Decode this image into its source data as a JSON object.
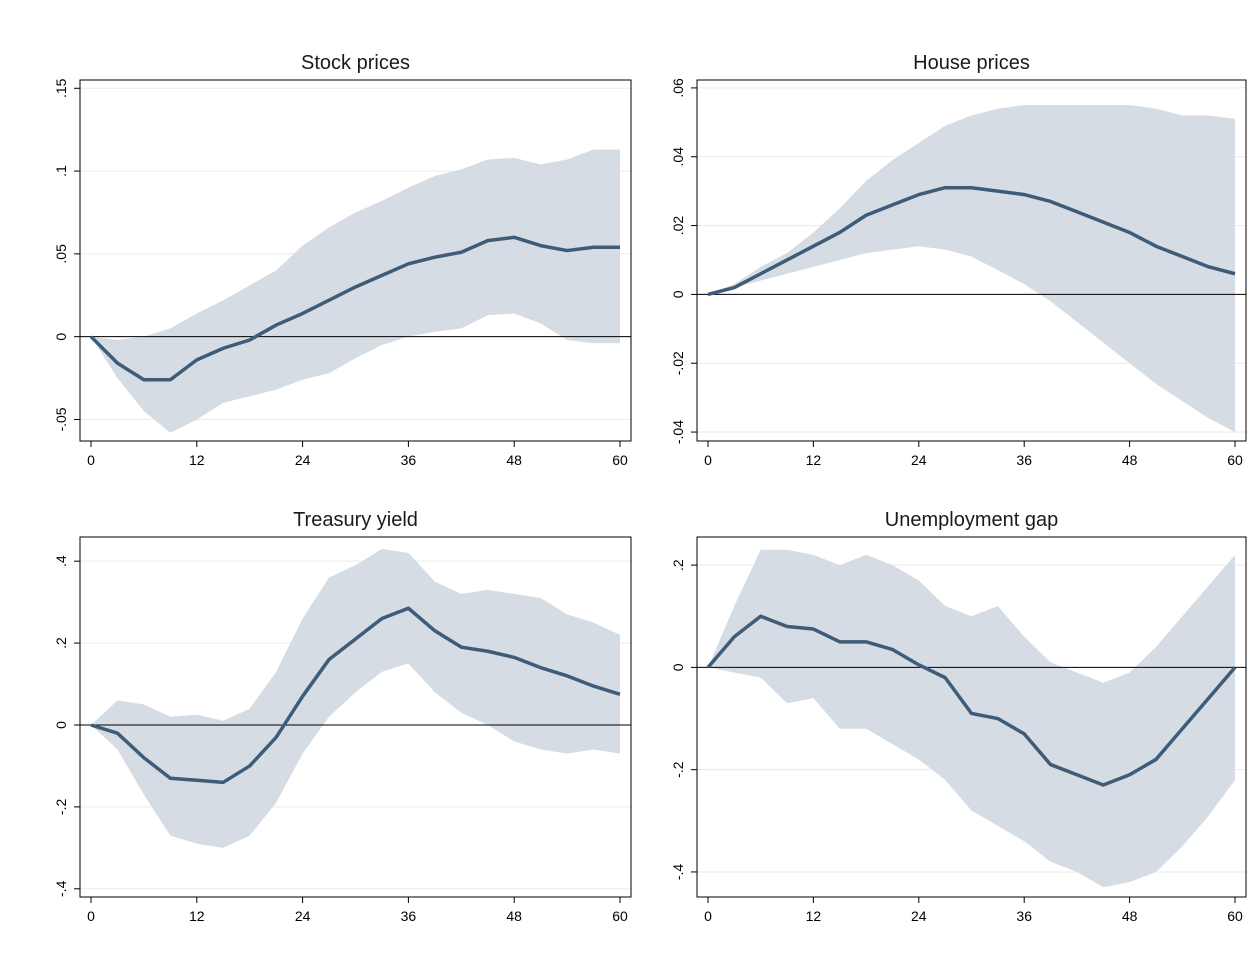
{
  "chart_data": [
    {
      "type": "line",
      "title": "Stock prices",
      "x": [
        0,
        3,
        6,
        9,
        12,
        15,
        18,
        21,
        24,
        27,
        30,
        33,
        36,
        39,
        42,
        45,
        48,
        51,
        54,
        57,
        60
      ],
      "values": [
        0,
        -0.016,
        -0.026,
        -0.026,
        -0.014,
        -0.007,
        -0.002,
        0.007,
        0.014,
        0.022,
        0.03,
        0.037,
        0.044,
        0.048,
        0.051,
        0.058,
        0.06,
        0.055,
        0.052,
        0.054,
        0.054
      ],
      "band": {
        "upper": [
          0,
          -0.002,
          0.0,
          0.005,
          0.014,
          0.022,
          0.031,
          0.04,
          0.055,
          0.066,
          0.075,
          0.082,
          0.09,
          0.097,
          0.101,
          0.107,
          0.108,
          0.104,
          0.107,
          0.113,
          0.113
        ],
        "lower": [
          0,
          -0.025,
          -0.045,
          -0.058,
          -0.05,
          -0.04,
          -0.036,
          -0.032,
          -0.026,
          -0.022,
          -0.013,
          -0.005,
          0.0,
          0.003,
          0.005,
          0.013,
          0.014,
          0.008,
          -0.002,
          -0.004,
          -0.004
        ]
      },
      "color": "#3e5c78",
      "band_color": "#d5dce3",
      "zero_line": true,
      "grid": true,
      "xlim": [
        -1.25,
        61.25
      ],
      "xticks": [
        0,
        12,
        24,
        36,
        48,
        60
      ],
      "ylim": [
        -0.063,
        0.155
      ],
      "yticks": [
        {
          "value": -0.05,
          "label": "-.05"
        },
        0,
        {
          "value": 0.05,
          "label": ".05"
        },
        {
          "value": 0.1,
          "label": ".1"
        },
        {
          "value": 0.15,
          "label": ".15"
        }
      ]
    },
    {
      "type": "line",
      "title": "House prices",
      "x": [
        0,
        3,
        6,
        9,
        12,
        15,
        18,
        21,
        24,
        27,
        30,
        33,
        36,
        39,
        42,
        45,
        48,
        51,
        54,
        57,
        60
      ],
      "values": [
        0,
        0.002,
        0.006,
        0.01,
        0.014,
        0.018,
        0.023,
        0.026,
        0.029,
        0.031,
        0.031,
        0.03,
        0.029,
        0.027,
        0.024,
        0.021,
        0.018,
        0.014,
        0.011,
        0.008,
        0.006
      ],
      "band": {
        "upper": [
          0,
          0.003,
          0.008,
          0.012,
          0.018,
          0.025,
          0.033,
          0.039,
          0.044,
          0.049,
          0.052,
          0.054,
          0.055,
          0.055,
          0.055,
          0.055,
          0.055,
          0.054,
          0.052,
          0.052,
          0.051
        ],
        "lower": [
          0,
          0.002,
          0.004,
          0.006,
          0.008,
          0.01,
          0.012,
          0.013,
          0.014,
          0.013,
          0.011,
          0.007,
          0.003,
          -0.002,
          -0.008,
          -0.014,
          -0.02,
          -0.026,
          -0.031,
          -0.036,
          -0.04
        ]
      },
      "color": "#3e5c78",
      "band_color": "#d5dce3",
      "zero_line": true,
      "grid": true,
      "xlim": [
        -1.25,
        61.25
      ],
      "xticks": [
        0,
        12,
        24,
        36,
        48,
        60
      ],
      "ylim": [
        -0.0426,
        0.0623
      ],
      "yticks": [
        {
          "value": -0.04,
          "label": "-.04"
        },
        {
          "value": -0.02,
          "label": "-.02"
        },
        0,
        {
          "value": 0.02,
          "label": ".02"
        },
        {
          "value": 0.04,
          "label": ".04"
        },
        {
          "value": 0.06,
          "label": ".06"
        }
      ]
    },
    {
      "type": "line",
      "title": "Treasury yield",
      "x": [
        0,
        3,
        6,
        9,
        12,
        15,
        18,
        21,
        24,
        27,
        30,
        33,
        36,
        39,
        42,
        45,
        48,
        51,
        54,
        57,
        60
      ],
      "values": [
        0,
        -0.02,
        -0.08,
        -0.13,
        -0.135,
        -0.14,
        -0.1,
        -0.03,
        0.07,
        0.16,
        0.21,
        0.26,
        0.285,
        0.23,
        0.19,
        0.18,
        0.165,
        0.14,
        0.12,
        0.095,
        0.075
      ],
      "band": {
        "upper": [
          0,
          0.06,
          0.05,
          0.02,
          0.025,
          0.01,
          0.04,
          0.13,
          0.26,
          0.36,
          0.39,
          0.43,
          0.42,
          0.35,
          0.32,
          0.33,
          0.32,
          0.31,
          0.27,
          0.25,
          0.22
        ],
        "lower": [
          0,
          -0.06,
          -0.17,
          -0.27,
          -0.29,
          -0.3,
          -0.27,
          -0.19,
          -0.07,
          0.02,
          0.08,
          0.13,
          0.15,
          0.08,
          0.03,
          0.0,
          -0.04,
          -0.06,
          -0.07,
          -0.06,
          -0.07
        ]
      },
      "color": "#3e5c78",
      "band_color": "#d5dce3",
      "zero_line": true,
      "grid": true,
      "xlim": [
        -1.25,
        61.25
      ],
      "xticks": [
        0,
        12,
        24,
        36,
        48,
        60
      ],
      "ylim": [
        -0.42,
        0.459
      ],
      "yticks": [
        {
          "value": -0.4,
          "label": "-.4"
        },
        {
          "value": -0.2,
          "label": "-.2"
        },
        0,
        {
          "value": 0.2,
          "label": ".2"
        },
        {
          "value": 0.4,
          "label": ".4"
        }
      ]
    },
    {
      "type": "line",
      "title": "Unemployment gap",
      "x": [
        0,
        3,
        6,
        9,
        12,
        15,
        18,
        21,
        24,
        27,
        30,
        33,
        36,
        39,
        42,
        45,
        48,
        51,
        54,
        57,
        60
      ],
      "values": [
        0,
        0.06,
        0.1,
        0.08,
        0.075,
        0.05,
        0.05,
        0.035,
        0.005,
        -0.02,
        -0.09,
        -0.1,
        -0.13,
        -0.19,
        -0.21,
        -0.23,
        -0.21,
        -0.18,
        -0.12,
        -0.06,
        0
      ],
      "band": {
        "upper": [
          0,
          0.12,
          0.23,
          0.23,
          0.22,
          0.2,
          0.22,
          0.2,
          0.17,
          0.12,
          0.1,
          0.12,
          0.06,
          0.01,
          -0.01,
          -0.03,
          -0.01,
          0.04,
          0.1,
          0.16,
          0.22
        ],
        "lower": [
          0,
          -0.01,
          -0.02,
          -0.07,
          -0.06,
          -0.12,
          -0.12,
          -0.15,
          -0.18,
          -0.22,
          -0.28,
          -0.31,
          -0.34,
          -0.38,
          -0.4,
          -0.43,
          -0.42,
          -0.4,
          -0.35,
          -0.29,
          -0.22
        ]
      },
      "color": "#3e5c78",
      "band_color": "#d5dce3",
      "zero_line": true,
      "grid": true,
      "xlim": [
        -1.25,
        61.25
      ],
      "xticks": [
        0,
        12,
        24,
        36,
        48,
        60
      ],
      "ylim": [
        -0.449,
        0.255
      ],
      "yticks": [
        {
          "value": -0.4,
          "label": "-.4"
        },
        {
          "value": -0.2,
          "label": "-.2"
        },
        0,
        {
          "value": 0.2,
          "label": ".2"
        }
      ]
    }
  ]
}
